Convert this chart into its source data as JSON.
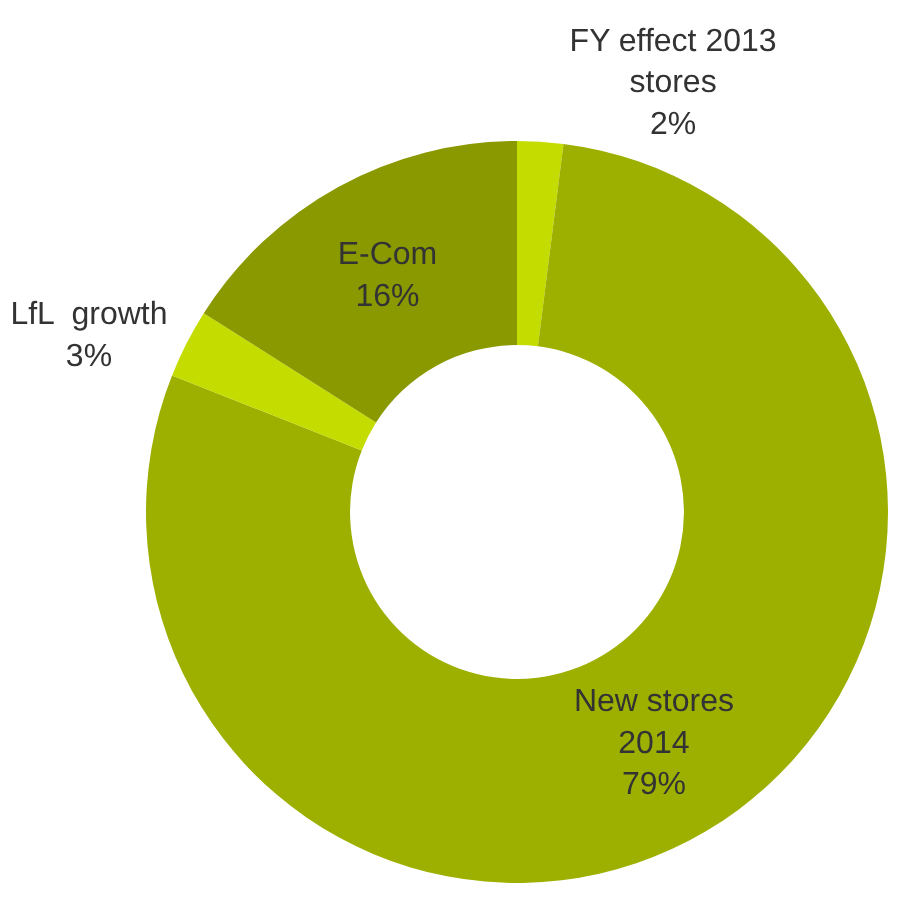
{
  "chart_data": {
    "type": "donut",
    "categories": [
      "FY effect 2013\nstores",
      "New stores\n2014",
      "LfL  growth",
      "E-Com"
    ],
    "values": [
      2,
      79,
      3,
      16
    ],
    "value_labels": [
      "2%",
      "79%",
      "3%",
      "16%"
    ],
    "colors": [
      "#c5dc00",
      "#9db000",
      "#c5dc00",
      "#8a9900"
    ],
    "legend": false
  }
}
